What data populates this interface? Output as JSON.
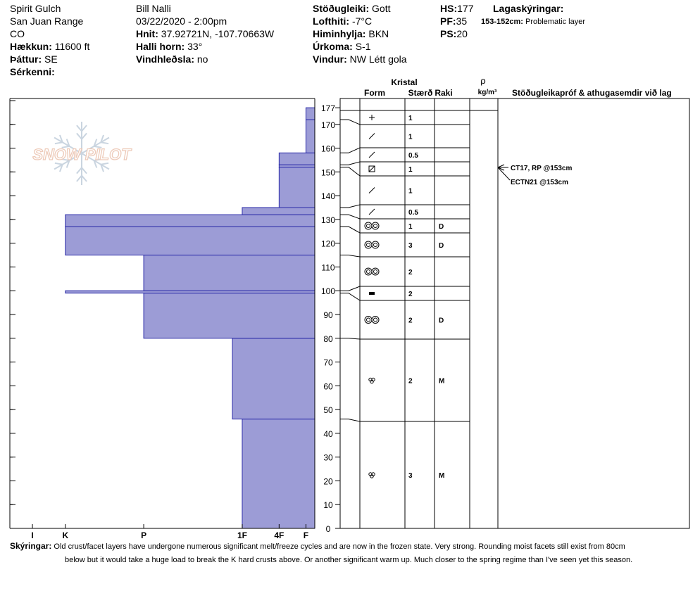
{
  "header": {
    "location": "Spirit Gulch",
    "range": "San Juan Range",
    "state": "CO",
    "elevation_label": "Hækkun:",
    "elevation_value": "11600 ft",
    "aspect_label": "Þáttur:",
    "aspect_value": "SE",
    "specifics_label": "Sérkenni:",
    "observer": "Bill Nalli",
    "datetime": "03/22/2020 - 2:00pm",
    "coords_label": "Hnit:",
    "coords_value": "37.92721N, -107.70663W",
    "slope_label": "Halli horn:",
    "slope_value": "33°",
    "wind_loading_label": "Vindhleðsla:",
    "wind_loading_value": "no",
    "stability_label": "Stöðugleiki:",
    "stability_value": "Gott",
    "airtemp_label": "Lofthiti:",
    "airtemp_value": "-7°C",
    "sky_label": "Himinhylja:",
    "sky_value": "BKN",
    "precip_label": "Úrkoma:",
    "precip_value": "S-1",
    "wind_label": "Vindur:",
    "wind_value": "NW Létt gola",
    "hs_label": "HS:",
    "hs_value": "177",
    "pf_label": "PF:",
    "pf_value": "35",
    "ps_label": "PS:",
    "ps_value": "20",
    "legend_title": "Lagaskýringar:",
    "problem_range": "153-152cm:",
    "problem_text": "Problematic layer"
  },
  "watermark": "SNOW PILOT",
  "table_headers": {
    "crystal": "Kristal",
    "form": "Form",
    "size": "Stærð",
    "moisture": "Raki",
    "rho": "ρ",
    "density_unit": "kg/m³",
    "tests": "Stöðugleikapróf & athugasemdir við lag"
  },
  "tests": [
    {
      "text": "CT17, RP @153cm",
      "height": 153
    },
    {
      "text": "ECTN21 @153cm",
      "height": 153
    }
  ],
  "footer": {
    "label": "Skýringar:",
    "line1": "Old crust/facet layers have undergone numerous significant melt/freeze cycles and are now in the frozen state. Very strong. Rounding moist facets still exist from 80cm",
    "line2": "below but it would take a huge load to break the K hard crusts above. Or another significant warm up. Much closer to the spring regime than I've seen yet this season."
  },
  "chart_data": {
    "type": "bar",
    "orientation": "horizontal",
    "title": "",
    "xlabel": "",
    "ylabel": "",
    "ylim": [
      0,
      180
    ],
    "y_ticks": [
      0,
      10,
      20,
      30,
      40,
      50,
      60,
      70,
      80,
      90,
      100,
      110,
      120,
      130,
      140,
      150,
      160,
      170,
      177
    ],
    "hardness_scale": [
      "I",
      "K",
      "P",
      "1F",
      "4F",
      "F"
    ],
    "hardness_positions": {
      "I": 0.926,
      "K": 0.818,
      "P": 0.561,
      "1F": 0.238,
      "4F": 0.117,
      "F": 0.029
    },
    "hardness_profile": [
      {
        "bottom": 0,
        "top": 46,
        "hardness": "1F"
      },
      {
        "bottom": 46,
        "top": 80,
        "hardness": "1F+"
      },
      {
        "bottom": 80,
        "top": 99,
        "hardness": "P"
      },
      {
        "bottom": 99,
        "top": 100,
        "hardness": "K"
      },
      {
        "bottom": 100,
        "top": 115,
        "hardness": "P"
      },
      {
        "bottom": 115,
        "top": 127,
        "hardness": "K"
      },
      {
        "bottom": 127,
        "top": 132,
        "hardness": "K"
      },
      {
        "bottom": 132,
        "top": 135,
        "hardness": "1F"
      },
      {
        "bottom": 135,
        "top": 152,
        "hardness": "4F"
      },
      {
        "bottom": 152,
        "top": 153,
        "hardness": "4F"
      },
      {
        "bottom": 153,
        "top": 158,
        "hardness": "4F"
      },
      {
        "bottom": 158,
        "top": 172,
        "hardness": "F"
      },
      {
        "bottom": 172,
        "top": 177,
        "hardness": "F"
      }
    ],
    "layers": [
      {
        "bottom": 172,
        "top": 177,
        "grain": "PP",
        "size": "1",
        "moisture": ""
      },
      {
        "bottom": 158,
        "top": 172,
        "grain": "DF",
        "size": "1",
        "moisture": ""
      },
      {
        "bottom": 153,
        "top": 158,
        "grain": "DF",
        "size": "0.5",
        "moisture": ""
      },
      {
        "bottom": 152,
        "top": 153,
        "grain": "FC",
        "size": "1",
        "moisture": ""
      },
      {
        "bottom": 135,
        "top": 152,
        "grain": "DF",
        "size": "1",
        "moisture": ""
      },
      {
        "bottom": 132,
        "top": 135,
        "grain": "DF",
        "size": "0.5",
        "moisture": ""
      },
      {
        "bottom": 127,
        "top": 132,
        "grain": "MF",
        "size": "1",
        "moisture": "D"
      },
      {
        "bottom": 115,
        "top": 127,
        "grain": "MF",
        "size": "3",
        "moisture": "D"
      },
      {
        "bottom": 100,
        "top": 115,
        "grain": "MF",
        "size": "2",
        "moisture": ""
      },
      {
        "bottom": 99,
        "top": 100,
        "grain": "IF",
        "size": "2",
        "moisture": ""
      },
      {
        "bottom": 80,
        "top": 99,
        "grain": "MF",
        "size": "2",
        "moisture": "D"
      },
      {
        "bottom": 46,
        "top": 80,
        "grain": "RG",
        "size": "2",
        "moisture": "M"
      },
      {
        "bottom": 0,
        "top": 46,
        "grain": "RG",
        "size": "3",
        "moisture": "M"
      }
    ],
    "colors": {
      "bar_fill": "#9c9cd6",
      "bar_stroke": "#2a2aa8"
    }
  }
}
